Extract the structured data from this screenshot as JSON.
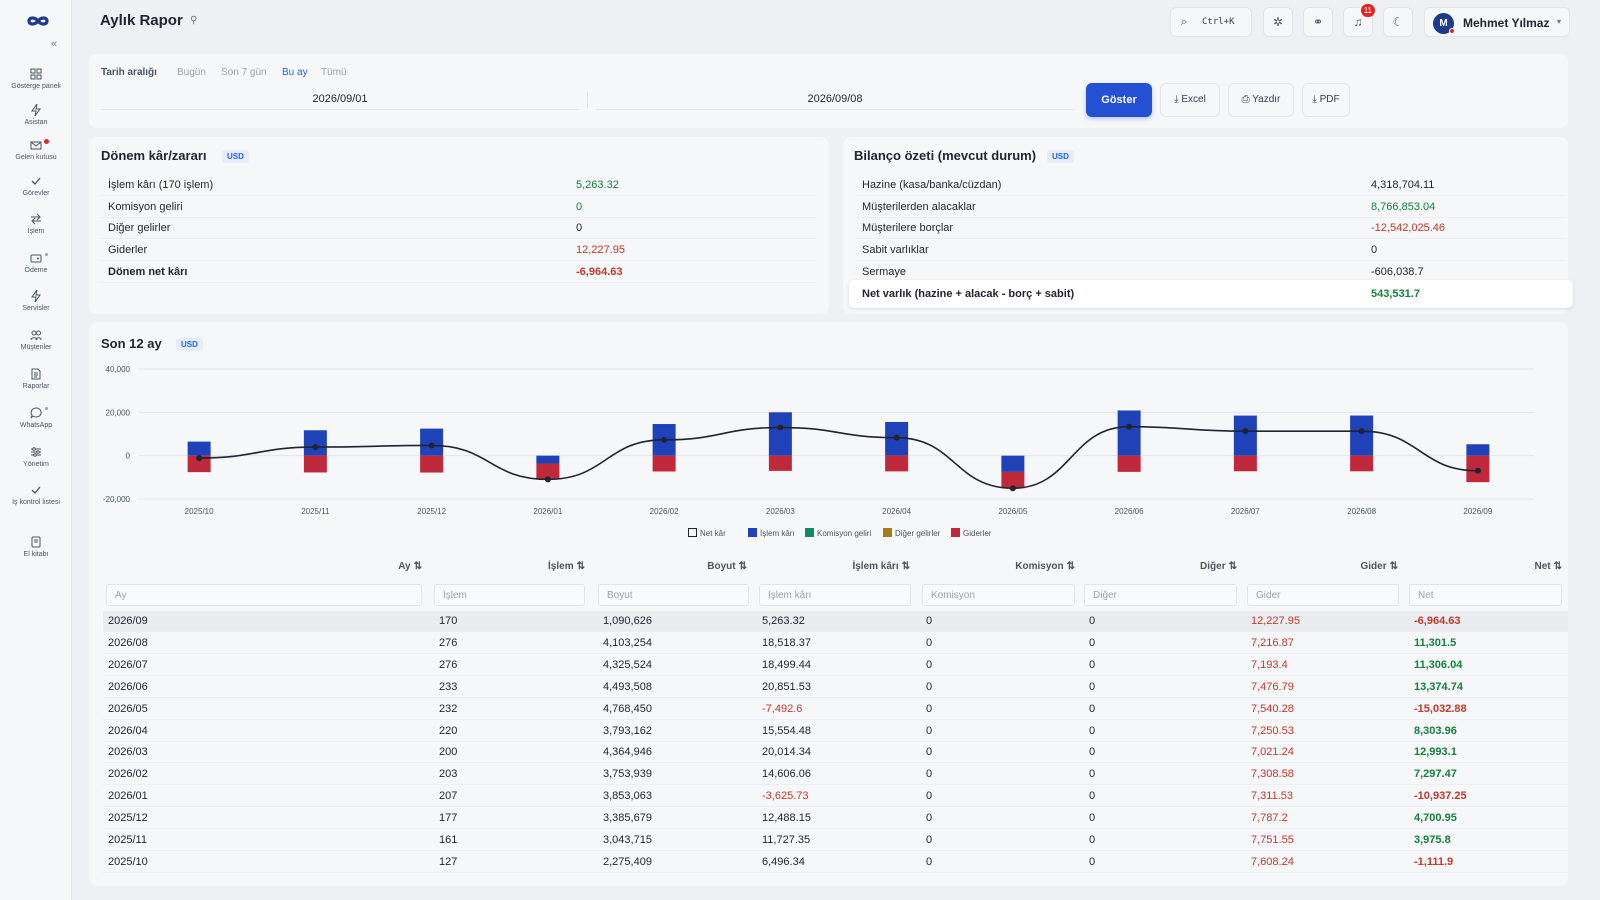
{
  "app": {
    "title": "Aylık Rapor"
  },
  "sidebar": {
    "collapse_icon": "double-chevron-left",
    "items": [
      {
        "label": "Gösterge paneli",
        "icon": "grid-icon"
      },
      {
        "label": "Asistan",
        "icon": "bolt-icon"
      },
      {
        "label": "Gelen kutusu",
        "icon": "inbox-icon"
      },
      {
        "label": "Görevler",
        "icon": "check-icon"
      },
      {
        "label": "İşlem",
        "icon": "swap-icon"
      },
      {
        "label": "Ödeme",
        "icon": "wallet-icon"
      },
      {
        "label": "Servisler",
        "icon": "bolt-icon"
      },
      {
        "label": "Müşteriler",
        "icon": "users-icon"
      },
      {
        "label": "Raporlar",
        "icon": "report-icon"
      },
      {
        "label": "WhatsApp",
        "icon": "chat-icon"
      },
      {
        "label": "Yönetim",
        "icon": "sliders-icon"
      },
      {
        "label": "İş kontrol listesi",
        "icon": "checklist-icon"
      },
      {
        "label": "El kitabı",
        "icon": "book-icon"
      }
    ]
  },
  "topbar": {
    "search_shortcut": "Ctrl+K",
    "notification_count": "11",
    "user": {
      "initial": "M",
      "name": "Mehmet Yılmaz"
    }
  },
  "filter": {
    "range_label": "Tarih aralığı",
    "options": [
      "Bugün",
      "Son 7 gün",
      "Bu ay",
      "Tümü"
    ],
    "active_option": "Bu ay",
    "start_date": "2026/09/01",
    "end_date": "2026/09/08",
    "show_button": "Göster",
    "excel_button": "Excel",
    "print_button": "Yazdır",
    "pdf_button": "PDF"
  },
  "pnl": {
    "title": "Dönem kâr/zararı",
    "currency": "USD",
    "rows": [
      {
        "label": "İşlem kârı (170 işlem)",
        "value": "5,263.32",
        "tone": "pos"
      },
      {
        "label": "Komisyon geliri",
        "value": "0",
        "tone": "pos"
      },
      {
        "label": "Diğer gelirler",
        "value": "0",
        "tone": ""
      },
      {
        "label": "Giderler",
        "value": "12,227.95",
        "tone": "neg"
      },
      {
        "label": "Dönem net kârı",
        "value": "-6,964.63",
        "tone": "neg"
      }
    ]
  },
  "balance": {
    "title": "Bilanço özeti (mevcut durum)",
    "currency": "USD",
    "rows": [
      {
        "label": "Hazine (kasa/banka/cüzdan)",
        "value": "4,318,704.11",
        "tone": ""
      },
      {
        "label": "Müşterilerden alacaklar",
        "value": "8,766,853.04",
        "tone": "pos"
      },
      {
        "label": "Müşterilere borçlar",
        "value": "-12,542,025.46",
        "tone": "neg"
      },
      {
        "label": "Sabit varlıklar",
        "value": "0",
        "tone": ""
      },
      {
        "label": "Sermaye",
        "value": "-606,038.7",
        "tone": ""
      }
    ],
    "net_label": "Net varlık (hazine + alacak - borç + sabit)",
    "net_value": "543,531.7"
  },
  "trend": {
    "title": "Son 12 ay",
    "currency": "USD"
  },
  "chart_data": {
    "type": "bar",
    "categories": [
      "2025/10",
      "2025/11",
      "2025/12",
      "2026/01",
      "2026/02",
      "2026/03",
      "2026/04",
      "2026/05",
      "2026/06",
      "2026/07",
      "2026/08",
      "2026/09"
    ],
    "y_ticks": [
      "40,000",
      "20,000",
      "0",
      "-20,000"
    ],
    "ylim": [
      -20000,
      40000
    ],
    "series": [
      {
        "name": "Net kâr",
        "type": "line",
        "values": [
          -1111.9,
          3975.8,
          4700.95,
          -10937.25,
          7297.47,
          12993.1,
          8303.96,
          -15032.88,
          13374.74,
          11306.04,
          11301.5,
          -6964.63
        ]
      },
      {
        "name": "İşlem kârı",
        "type": "bar",
        "values": [
          6496.34,
          11727.35,
          12488.15,
          -3625.73,
          14606.06,
          20014.34,
          15554.48,
          -7492.6,
          20851.53,
          18499.44,
          18518.37,
          5263.32
        ]
      },
      {
        "name": "Komisyon geliri",
        "type": "bar",
        "values": [
          0,
          0,
          0,
          0,
          0,
          0,
          0,
          0,
          0,
          0,
          0,
          0
        ]
      },
      {
        "name": "Diğer gelirler",
        "type": "bar",
        "values": [
          0,
          0,
          0,
          0,
          0,
          0,
          0,
          0,
          0,
          0,
          0,
          0
        ]
      },
      {
        "name": "Giderler",
        "type": "bar",
        "values": [
          -7608.24,
          -7751.55,
          -7787.2,
          -7311.53,
          -7308.58,
          -7021.24,
          -7250.53,
          -7540.28,
          -7476.79,
          -7193.4,
          -7216.87,
          -12227.95
        ]
      }
    ],
    "colors": {
      "Net kâr": "#1f2430",
      "İşlem kârı": "#2042b8",
      "Komisyon geliri": "#0f8a6a",
      "Diğer gelirler": "#a67c1a",
      "Giderler": "#c0283c"
    }
  },
  "table": {
    "columns": [
      "Ay",
      "İşlem",
      "Boyut",
      "İşlem kârı",
      "Komisyon",
      "Diğer",
      "Gider",
      "Net"
    ],
    "sort_icon": "⇅",
    "filters": [
      "Ay",
      "İşlem",
      "Boyut",
      "İşlem kârı",
      "Komisyon",
      "Diğer",
      "Gider",
      "Net"
    ],
    "rows": [
      [
        "2026/09",
        "170",
        "1,090,626",
        "5,263.32",
        "0",
        "0",
        "12,227.95",
        "-6,964.63"
      ],
      [
        "2026/08",
        "276",
        "4,103,254",
        "18,518.37",
        "0",
        "0",
        "7,216.87",
        "11,301.5"
      ],
      [
        "2026/07",
        "276",
        "4,325,524",
        "18,499.44",
        "0",
        "0",
        "7,193.4",
        "11,306.04"
      ],
      [
        "2026/06",
        "233",
        "4,493,508",
        "20,851.53",
        "0",
        "0",
        "7,476.79",
        "13,374.74"
      ],
      [
        "2026/05",
        "232",
        "4,768,450",
        "-7,492.6",
        "0",
        "0",
        "7,540.28",
        "-15,032.88"
      ],
      [
        "2026/04",
        "220",
        "3,793,162",
        "15,554.48",
        "0",
        "0",
        "7,250.53",
        "8,303.96"
      ],
      [
        "2026/03",
        "200",
        "4,364,946",
        "20,014.34",
        "0",
        "0",
        "7,021.24",
        "12,993.1"
      ],
      [
        "2026/02",
        "203",
        "3,753,939",
        "14,606.06",
        "0",
        "0",
        "7,308.58",
        "7,297.47"
      ],
      [
        "2026/01",
        "207",
        "3,853,063",
        "-3,625.73",
        "0",
        "0",
        "7,311.53",
        "-10,937.25"
      ],
      [
        "2025/12",
        "177",
        "3,385,679",
        "12,488.15",
        "0",
        "0",
        "7,787.2",
        "4,700.95"
      ],
      [
        "2025/11",
        "161",
        "3,043,715",
        "11,727.35",
        "0",
        "0",
        "7,751.55",
        "3,975.8"
      ],
      [
        "2025/10",
        "127",
        "2,275,409",
        "6,496.34",
        "0",
        "0",
        "7,608.24",
        "-1,111.9"
      ]
    ]
  }
}
